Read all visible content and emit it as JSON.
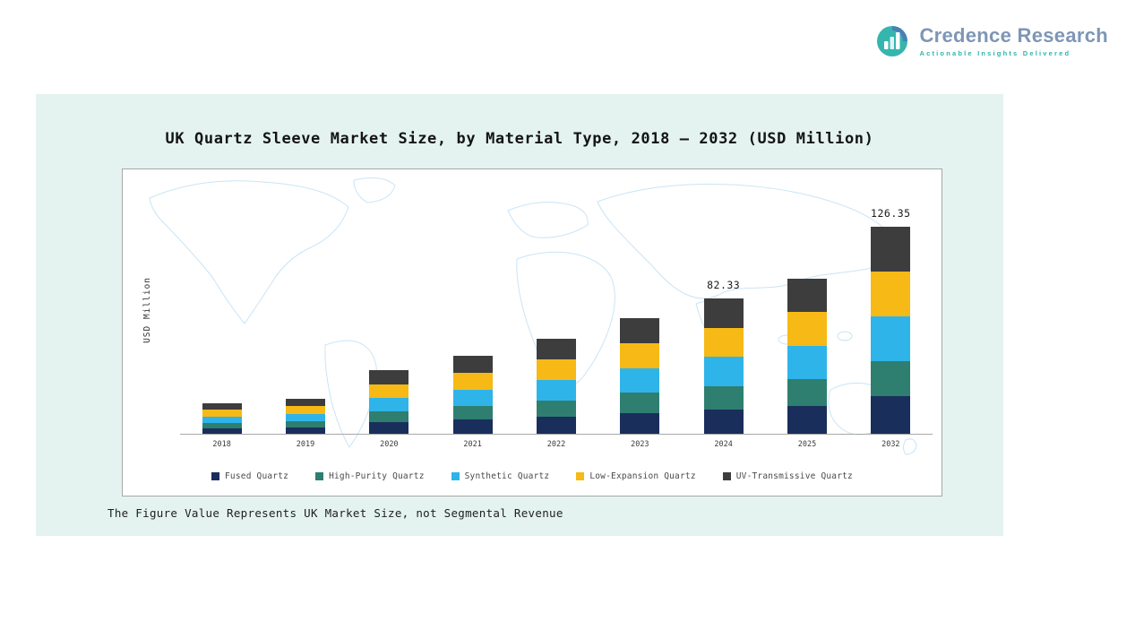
{
  "logo": {
    "name": "Credence Research",
    "tagline": "Actionable Insights Delivered",
    "name_color": "#7e96b5",
    "tagline_color": "#2fb3ae"
  },
  "panel": {
    "background_color": "#e4f3f0",
    "note": "The Figure Value Represents UK Market Size, not Segmental Revenue"
  },
  "chart_data": {
    "type": "bar",
    "stacked": true,
    "title": "UK Quartz Sleeve Market Size, by Material Type, 2018 – 2032 (USD Million)",
    "xlabel": "",
    "ylabel": "USD Million",
    "ylim": [
      0,
      135
    ],
    "grid": false,
    "legend_position": "bottom",
    "categories": [
      "2018",
      "2019",
      "2020",
      "2021",
      "2022",
      "2023",
      "2024",
      "2025",
      "2032"
    ],
    "series": [
      {
        "name": "Fused Quartz",
        "color": "#1a2e5c",
        "values": [
          3.4,
          3.9,
          7.0,
          8.6,
          10.4,
          12.7,
          14.8,
          17.0,
          22.7
        ]
      },
      {
        "name": "High-Purity Quartz",
        "color": "#2e7f70",
        "values": [
          3.2,
          3.7,
          6.6,
          8.2,
          10.0,
          12.2,
          14.2,
          16.3,
          21.7
        ]
      },
      {
        "name": "Synthetic Quartz",
        "color": "#2fb4e9",
        "values": [
          4.0,
          4.6,
          8.3,
          10.2,
          12.4,
          15.2,
          17.8,
          20.5,
          27.3
        ]
      },
      {
        "name": "Low-Expansion Quartz",
        "color": "#f7b916",
        "values": [
          4.0,
          4.6,
          8.3,
          10.2,
          12.4,
          15.2,
          17.8,
          20.5,
          27.3
        ]
      },
      {
        "name": "UV-Transmissive Quartz",
        "color": "#3d3d3d",
        "values": [
          4.1,
          4.6,
          8.5,
          10.4,
          12.7,
          15.5,
          17.73,
          20.5,
          27.35
        ]
      }
    ],
    "totals": [
      18.7,
      21.4,
      38.7,
      47.6,
      57.9,
      70.8,
      82.33,
      94.8,
      126.35
    ],
    "annotations": [
      {
        "category": "2024",
        "text": "82.33"
      },
      {
        "category": "2032",
        "text": "126.35"
      }
    ]
  }
}
